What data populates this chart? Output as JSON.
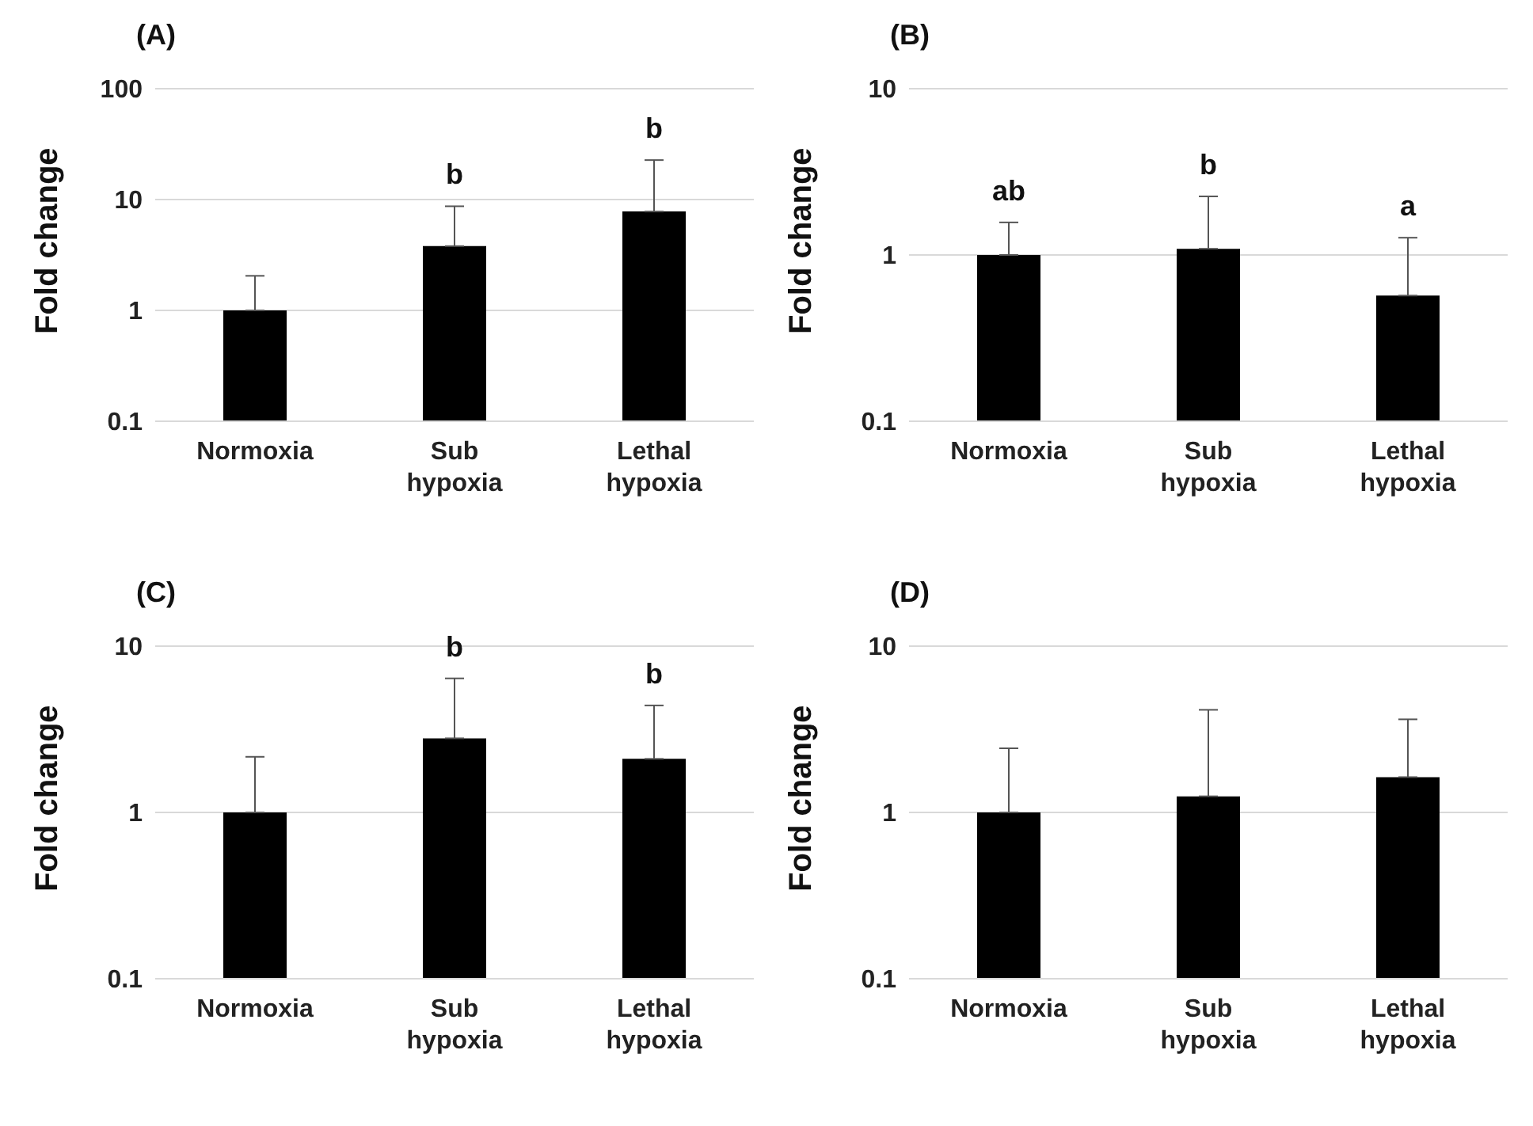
{
  "chart_data": [
    {
      "type": "bar",
      "title": "(A)",
      "ylabel": "Fold change",
      "categories": [
        "Normoxia",
        "Sub hypoxia",
        "Lethal hypoxia"
      ],
      "values": [
        1,
        3.8,
        7.8
      ],
      "color": "#000000",
      "errors": [
        [
          1,
          2.05
        ],
        [
          3.8,
          8.7
        ],
        [
          7.8,
          22.7
        ]
      ],
      "log": true,
      "ylim": [
        0.1,
        100
      ],
      "yticks": [
        0.1,
        1,
        10,
        100
      ],
      "grid": "y",
      "annotations": [
        {
          "text": "b",
          "x": "Sub hypoxia",
          "y": 8.7
        },
        {
          "text": "b",
          "x": "Lethal hypoxia",
          "y": 22.7
        }
      ]
    },
    {
      "type": "bar",
      "title": "(B)",
      "ylabel": "Fold change",
      "categories": [
        "Normoxia",
        "Sub hypoxia",
        "Lethal hypoxia"
      ],
      "values": [
        1,
        1.09,
        0.57
      ],
      "color": "#000000",
      "errors": [
        [
          1,
          1.57
        ],
        [
          1.09,
          2.25
        ],
        [
          0.57,
          1.27
        ]
      ],
      "log": true,
      "ylim": [
        0.1,
        10
      ],
      "yticks": [
        0.1,
        1,
        10
      ],
      "grid": "y",
      "annotations": [
        {
          "text": "ab",
          "x": "Normoxia",
          "y": 1.57
        },
        {
          "text": "b",
          "x": "Sub hypoxia",
          "y": 2.25
        },
        {
          "text": "a",
          "x": "Lethal hypoxia",
          "y": 1.27
        }
      ]
    },
    {
      "type": "bar",
      "title": "(C)",
      "ylabel": "Fold change",
      "categories": [
        "Normoxia",
        "Sub hypoxia",
        "Lethal hypoxia"
      ],
      "values": [
        1,
        2.79,
        2.1
      ],
      "color": "#000000",
      "errors": [
        [
          1,
          2.16
        ],
        [
          2.79,
          6.4
        ],
        [
          2.1,
          4.4
        ]
      ],
      "log": true,
      "ylim": [
        0.1,
        10
      ],
      "yticks": [
        0.1,
        1,
        10
      ],
      "grid": "y",
      "annotations": [
        {
          "text": "b",
          "x": "Sub hypoxia",
          "y": 6.4
        },
        {
          "text": "b",
          "x": "Lethal hypoxia",
          "y": 4.4
        }
      ]
    },
    {
      "type": "bar",
      "title": "(D)",
      "ylabel": "Fold change",
      "categories": [
        "Normoxia",
        "Sub hypoxia",
        "Lethal hypoxia"
      ],
      "values": [
        1,
        1.25,
        1.63
      ],
      "color": "#000000",
      "errors": [
        [
          1,
          2.43
        ],
        [
          1.25,
          4.14
        ],
        [
          1.63,
          3.63
        ]
      ],
      "log": true,
      "ylim": [
        0.1,
        10
      ],
      "yticks": [
        0.1,
        1,
        10
      ],
      "grid": "y"
    }
  ]
}
